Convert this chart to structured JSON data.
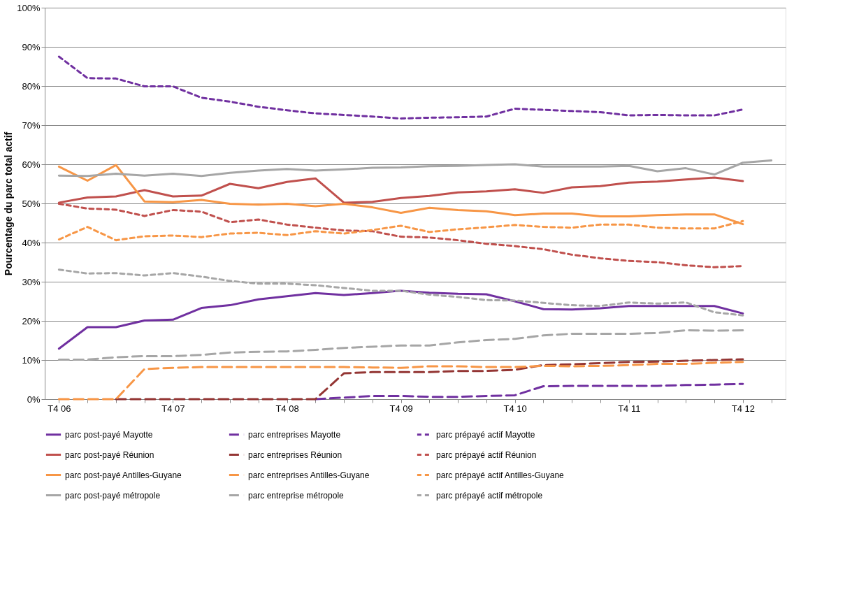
{
  "chart_data": {
    "type": "line",
    "ylabel": "Pourcentage du parc total actif",
    "categories": [
      "T4 06",
      null,
      null,
      null,
      "T4 07",
      null,
      null,
      null,
      "T4 08",
      null,
      null,
      null,
      "T4 09",
      null,
      null,
      null,
      "T4 10",
      null,
      null,
      null,
      "T4 11",
      null,
      null,
      null,
      "T4 12",
      null
    ],
    "ylim": [
      0,
      100
    ],
    "yticks": [
      {
        "value": 0,
        "label": "0%"
      },
      {
        "value": 10,
        "label": "10%"
      },
      {
        "value": 20,
        "label": "20%"
      },
      {
        "value": 30,
        "label": "30%"
      },
      {
        "value": 40,
        "label": "40%"
      },
      {
        "value": 50,
        "label": "50%"
      },
      {
        "value": 60,
        "label": "60%"
      },
      {
        "value": 70,
        "label": "70%"
      },
      {
        "value": 80,
        "label": "80%"
      },
      {
        "value": 90,
        "label": "90%"
      },
      {
        "value": 100,
        "label": "100%"
      }
    ],
    "grid": "y",
    "legend": "bottom",
    "marker": "none",
    "series": [
      {
        "name": "parc post-payé Mayotte",
        "color": "#7030a0",
        "line_style": "solid",
        "values": [
          12.9,
          18.4,
          18.4,
          20.1,
          20.3,
          23.3,
          24,
          25.5,
          26.3,
          27.1,
          26.6,
          27.1,
          27.7,
          27.2,
          26.9,
          26.8,
          25,
          23,
          22.9,
          23.2,
          23.8,
          23.8,
          23.8,
          23.8,
          21.9,
          null
        ]
      },
      {
        "name": "parc entreprises  Mayotte",
        "color": "#7030a0",
        "line_style": "dashed",
        "values": [
          null,
          null,
          null,
          null,
          null,
          null,
          null,
          null,
          null,
          0,
          0.4,
          0.8,
          0.8,
          0.6,
          0.6,
          0.8,
          1,
          3.3,
          3.4,
          3.4,
          3.4,
          3.4,
          3.6,
          3.7,
          3.9,
          null
        ]
      },
      {
        "name": "parc prépayé actif Mayotte",
        "color": "#7030a0",
        "line_style": "dotted",
        "values": [
          87.5,
          82,
          81.9,
          79.9,
          79.9,
          77,
          76,
          74.7,
          73.8,
          73,
          72.6,
          72.2,
          71.7,
          71.9,
          72,
          72.2,
          74.2,
          73.9,
          73.6,
          73.3,
          72.5,
          72.6,
          72.5,
          72.5,
          74,
          null
        ]
      },
      {
        "name": "parc post-payé Réunion",
        "color": "#c0504d",
        "line_style": "solid",
        "values": [
          50.2,
          51.5,
          51.8,
          53.4,
          51.8,
          52,
          55,
          53.9,
          55.5,
          56.4,
          50.2,
          50.4,
          51.4,
          51.9,
          52.8,
          53.1,
          53.6,
          52.7,
          54.1,
          54.4,
          55.3,
          55.6,
          56.1,
          56.6,
          55.7,
          null
        ]
      },
      {
        "name": "parc entreprises  Réunion",
        "color": "#943634",
        "line_style": "dashed",
        "values": [
          null,
          null,
          0,
          0,
          0,
          0,
          0,
          0,
          0,
          0,
          6.6,
          6.9,
          6.9,
          6.9,
          7.2,
          7.2,
          7.5,
          8.7,
          8.9,
          9.2,
          9.5,
          9.6,
          9.8,
          10,
          10.2,
          null
        ]
      },
      {
        "name": "parc prépayé actif  Réunion",
        "color": "#c0504d",
        "line_style": "dotted",
        "values": [
          49.9,
          48.7,
          48.4,
          46.8,
          48.3,
          47.9,
          45.2,
          45.9,
          44.6,
          43.8,
          43.1,
          42.9,
          41.5,
          41.3,
          40.6,
          39.7,
          39.1,
          38.3,
          36.9,
          36,
          35.3,
          35,
          34.2,
          33.7,
          34,
          null
        ]
      },
      {
        "name": "parc post-payé Antilles-Guyane",
        "color": "#f79646",
        "line_style": "solid",
        "values": [
          59.4,
          55.8,
          59.8,
          50.5,
          50.3,
          50.9,
          49.9,
          49.7,
          49.9,
          49.3,
          49.9,
          49,
          47.6,
          48.9,
          48.3,
          48,
          47,
          47.4,
          47.4,
          46.7,
          46.7,
          47,
          47.2,
          47.2,
          44.7,
          null
        ]
      },
      {
        "name": "parc entreprises Antilles-Guyane",
        "color": "#f79646",
        "line_style": "dashed",
        "values": [
          0,
          0,
          0,
          7.7,
          8,
          8.2,
          8.2,
          8.2,
          8.2,
          8.2,
          8.2,
          8.1,
          8,
          8.4,
          8.4,
          8.2,
          8.2,
          8.5,
          8.4,
          8.5,
          8.7,
          9,
          9,
          9.3,
          9.5,
          null
        ]
      },
      {
        "name": "parc prépayé actif Antilles-Guyane",
        "color": "#f79646",
        "line_style": "dotted",
        "values": [
          40.8,
          44,
          40.6,
          41.6,
          41.8,
          41.4,
          42.3,
          42.5,
          41.9,
          42.9,
          42.3,
          43.2,
          44.3,
          42.7,
          43.4,
          43.9,
          44.5,
          44,
          43.8,
          44.6,
          44.6,
          43.8,
          43.6,
          43.6,
          45.5,
          null
        ]
      },
      {
        "name": "parc post-payé métropole",
        "color": "#a6a6a6",
        "line_style": "solid",
        "values": [
          57.1,
          57,
          57.6,
          57.1,
          57.6,
          57,
          57.8,
          58.4,
          58.8,
          58.4,
          58.7,
          59.1,
          59.2,
          59.5,
          59.6,
          59.8,
          60,
          59.4,
          59.4,
          59.4,
          59.6,
          58.2,
          59,
          57.4,
          60.4,
          61
        ]
      },
      {
        "name": "parc entreprise métropole",
        "color": "#a6a6a6",
        "line_style": "dashed",
        "values": [
          10.1,
          10.1,
          10.7,
          11,
          11,
          11.3,
          11.9,
          12.1,
          12.2,
          12.6,
          13.1,
          13.4,
          13.7,
          13.7,
          14.5,
          15.1,
          15.4,
          16.3,
          16.7,
          16.7,
          16.7,
          16.9,
          17.6,
          17.5,
          17.6,
          null
        ]
      },
      {
        "name": "parc prépayé actif métropole",
        "color": "#a6a6a6",
        "line_style": "dotted",
        "values": [
          33.1,
          32.1,
          32.2,
          31.6,
          32.2,
          31.3,
          30.2,
          29.5,
          29.5,
          29.1,
          28.4,
          27.7,
          27.7,
          26.7,
          26.1,
          25.3,
          25.2,
          24.6,
          24,
          23.8,
          24.7,
          24.4,
          24.7,
          22.2,
          21.4,
          null
        ]
      }
    ]
  }
}
